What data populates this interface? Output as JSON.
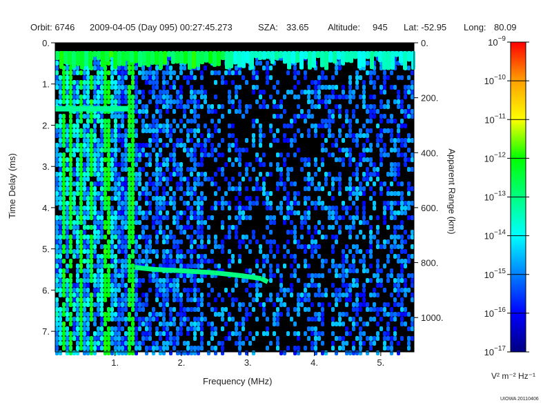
{
  "header": {
    "orbit": "Orbit: 6746",
    "datetime": "2009-04-05 (Day 095) 00:27:45.273",
    "sza_label": "SZA:",
    "sza": "33.65",
    "alt_label": "Altitude:",
    "alt": "945",
    "lat": "Lat: -52.95",
    "long_label": "Long:",
    "long": "80.09"
  },
  "footer": "UIOWA 20110406",
  "chart_data": {
    "type": "heatmap",
    "xlabel": "Frequency (MHz)",
    "ylabel": "Time Delay (ms)",
    "y2label": "Apparent Range (km)",
    "xlim": [
      0.1,
      5.5
    ],
    "ylim": [
      7.5,
      0
    ],
    "y2lim": [
      1125,
      0
    ],
    "xticks": [
      "1.",
      "2.",
      "3.",
      "4.",
      "5."
    ],
    "xtick_values": [
      1,
      2,
      3,
      4,
      5
    ],
    "yticks": [
      "0.",
      "1.",
      "2.",
      "3.",
      "4.",
      "5.",
      "6.",
      "7."
    ],
    "ytick_values": [
      0,
      1,
      2,
      3,
      4,
      5,
      6,
      7
    ],
    "y2ticks": [
      "0.",
      "200.",
      "400.",
      "600.",
      "800.",
      "1000."
    ],
    "y2tick_values": [
      0,
      200,
      400,
      600,
      800,
      1000
    ],
    "colorbar": {
      "label": "V² m⁻² Hz⁻¹",
      "scale": "log",
      "range": [
        -17,
        -9
      ],
      "ticks": [
        "10^-9",
        "10^-10",
        "10^-11",
        "10^-12",
        "10^-13",
        "10^-14",
        "10^-15",
        "10^-16",
        "10^-17"
      ],
      "tick_values": [
        -9,
        -10,
        -11,
        -12,
        -13,
        -14,
        -15,
        -16,
        -17
      ],
      "colors": [
        "#000080",
        "#0000ff",
        "#0080ff",
        "#00ffff",
        "#00ff80",
        "#00ff00",
        "#ffff00",
        "#ffa000",
        "#ff0000"
      ]
    },
    "features": {
      "background": "#000000",
      "echo_trace": [
        [
          1.3,
          5.45
        ],
        [
          1.6,
          5.5
        ],
        [
          2.0,
          5.53
        ],
        [
          2.5,
          5.58
        ],
        [
          2.9,
          5.65
        ],
        [
          3.2,
          5.72
        ],
        [
          3.3,
          5.8
        ]
      ],
      "plasma_lines_mhz": [
        0.2,
        0.3,
        0.45,
        0.6,
        0.85,
        1.22
      ],
      "harmonic_delay_ms": 1.6
    }
  }
}
